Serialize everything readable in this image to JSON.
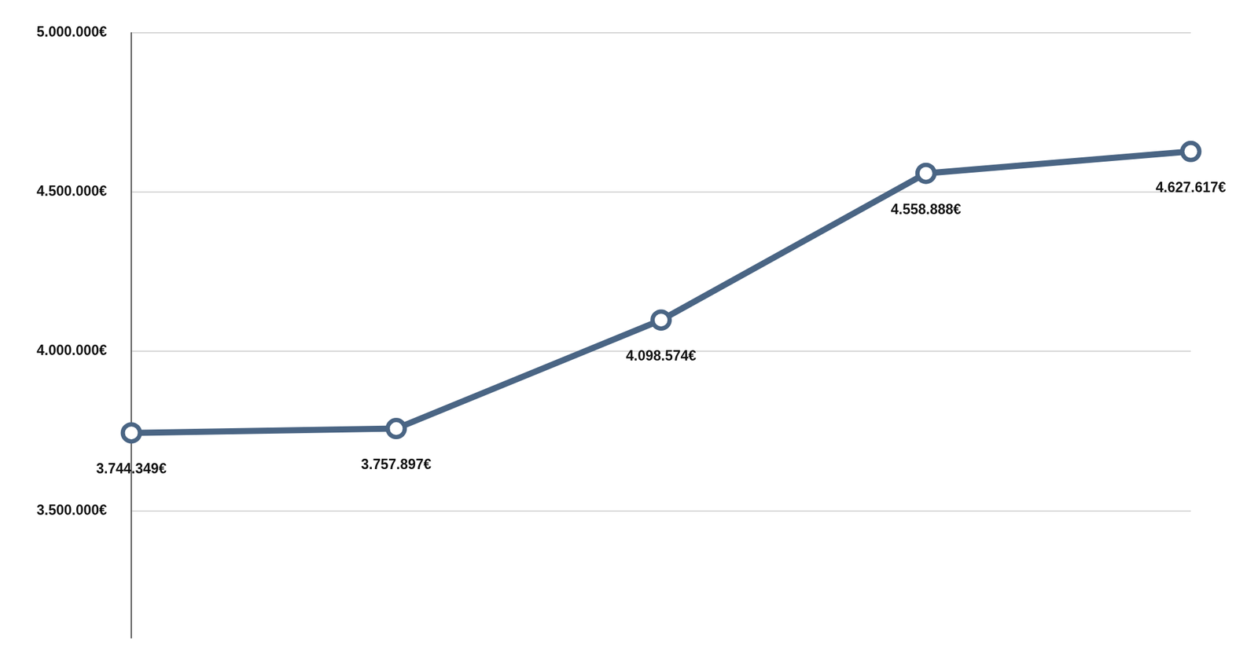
{
  "chart_data": {
    "type": "line",
    "categories": [
      null,
      null,
      null,
      null,
      null
    ],
    "values": [
      3744349,
      3757897,
      4098574,
      4558888,
      4627617
    ],
    "value_labels": [
      "3.744.349€",
      "3.757.897€",
      "4.098.574€",
      "4.558.888€",
      "4.627.617€"
    ],
    "data_labels": true,
    "color": "#4a6584",
    "marker": "circle",
    "line_style": "solid",
    "ylim": [
      3100000,
      5000000
    ],
    "yticks": [
      {
        "value": 3500000,
        "label": "3.500.000€"
      },
      {
        "value": 4000000,
        "label": "4.000.000€"
      },
      {
        "value": 4500000,
        "label": "4.500.000€"
      },
      {
        "value": 5000000,
        "label": "5.000.000€"
      }
    ],
    "grid": true,
    "tick_labels": "y"
  }
}
